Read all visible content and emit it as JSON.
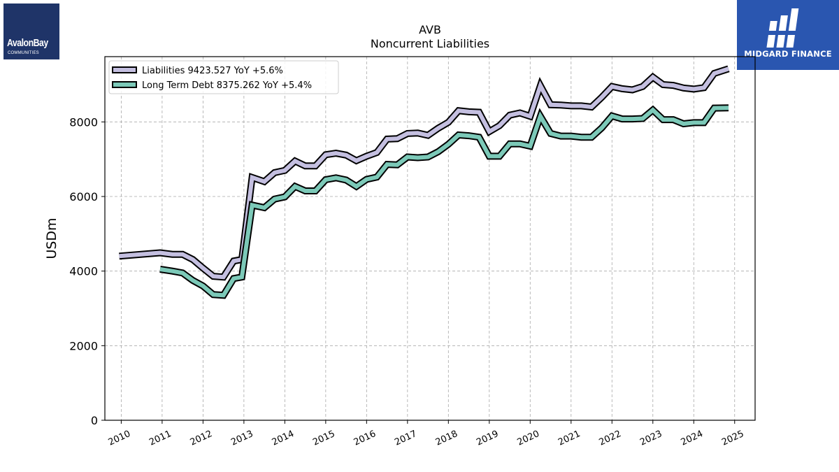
{
  "logos": {
    "left": {
      "brand": "AvalonBay",
      "sub": "COMMUNITIES",
      "background": "#1f3468"
    },
    "right": {
      "word": "MIDGARD FINANCE",
      "background": "#2a56b0"
    }
  },
  "chart_data": {
    "type": "line",
    "title": "AVB",
    "subtitle": "Noncurrent  Liabilities",
    "xlabel": "",
    "ylabel": "USDm",
    "xlim": [
      2009.6,
      2025.5
    ],
    "ylim": [
      0,
      9750
    ],
    "x_ticks": [
      2010,
      2011,
      2012,
      2013,
      2014,
      2015,
      2016,
      2017,
      2018,
      2019,
      2020,
      2021,
      2022,
      2023,
      2024,
      2025
    ],
    "y_ticks": [
      0,
      2000,
      4000,
      6000,
      8000
    ],
    "grid": true,
    "legend_position": "top-left",
    "series": [
      {
        "name": "Liabilities",
        "legend_label": "Liabilities  9423.527 YoY +5.6%",
        "color": "#c4bfe0",
        "points": [
          [
            2009.95,
            4400
          ],
          [
            2010.95,
            4490
          ],
          [
            2011.25,
            4450
          ],
          [
            2011.5,
            4450
          ],
          [
            2011.75,
            4310
          ],
          [
            2012.0,
            4080
          ],
          [
            2012.25,
            3860
          ],
          [
            2012.5,
            3840
          ],
          [
            2012.75,
            4270
          ],
          [
            2012.95,
            4310
          ],
          [
            2013.2,
            6510
          ],
          [
            2013.5,
            6400
          ],
          [
            2013.75,
            6640
          ],
          [
            2014.0,
            6700
          ],
          [
            2014.25,
            6950
          ],
          [
            2014.5,
            6820
          ],
          [
            2014.75,
            6820
          ],
          [
            2015.0,
            7120
          ],
          [
            2015.25,
            7160
          ],
          [
            2015.5,
            7110
          ],
          [
            2015.75,
            6960
          ],
          [
            2016.0,
            7080
          ],
          [
            2016.25,
            7180
          ],
          [
            2016.5,
            7540
          ],
          [
            2016.75,
            7550
          ],
          [
            2017.0,
            7690
          ],
          [
            2017.25,
            7700
          ],
          [
            2017.5,
            7640
          ],
          [
            2017.75,
            7830
          ],
          [
            2018.0,
            7990
          ],
          [
            2018.25,
            8300
          ],
          [
            2018.5,
            8270
          ],
          [
            2018.75,
            8260
          ],
          [
            2019.0,
            7740
          ],
          [
            2019.25,
            7900
          ],
          [
            2019.5,
            8180
          ],
          [
            2019.75,
            8240
          ],
          [
            2020.0,
            8150
          ],
          [
            2020.25,
            8970
          ],
          [
            2020.5,
            8460
          ],
          [
            2020.75,
            8450
          ],
          [
            2021.0,
            8430
          ],
          [
            2021.25,
            8430
          ],
          [
            2021.5,
            8400
          ],
          [
            2021.75,
            8660
          ],
          [
            2022.0,
            8950
          ],
          [
            2022.25,
            8890
          ],
          [
            2022.5,
            8860
          ],
          [
            2022.75,
            8950
          ],
          [
            2023.0,
            9200
          ],
          [
            2023.25,
            9000
          ],
          [
            2023.5,
            8980
          ],
          [
            2023.75,
            8910
          ],
          [
            2024.0,
            8880
          ],
          [
            2024.25,
            8920
          ],
          [
            2024.5,
            9300
          ],
          [
            2024.85,
            9424
          ]
        ]
      },
      {
        "name": "Long Term Debt",
        "legend_label": "Long Term Debt  8375.262 YoY +5.4%",
        "color": "#7cc9b8",
        "points": [
          [
            2010.95,
            4050
          ],
          [
            2011.25,
            4000
          ],
          [
            2011.5,
            3950
          ],
          [
            2011.75,
            3750
          ],
          [
            2012.0,
            3600
          ],
          [
            2012.25,
            3370
          ],
          [
            2012.5,
            3350
          ],
          [
            2012.75,
            3800
          ],
          [
            2012.95,
            3840
          ],
          [
            2013.2,
            5770
          ],
          [
            2013.5,
            5700
          ],
          [
            2013.75,
            5930
          ],
          [
            2014.0,
            5990
          ],
          [
            2014.25,
            6270
          ],
          [
            2014.5,
            6150
          ],
          [
            2014.75,
            6150
          ],
          [
            2015.0,
            6450
          ],
          [
            2015.25,
            6500
          ],
          [
            2015.5,
            6440
          ],
          [
            2015.75,
            6270
          ],
          [
            2016.0,
            6460
          ],
          [
            2016.25,
            6520
          ],
          [
            2016.5,
            6860
          ],
          [
            2016.75,
            6850
          ],
          [
            2017.0,
            7060
          ],
          [
            2017.25,
            7040
          ],
          [
            2017.5,
            7060
          ],
          [
            2017.75,
            7200
          ],
          [
            2018.0,
            7400
          ],
          [
            2018.25,
            7650
          ],
          [
            2018.5,
            7630
          ],
          [
            2018.75,
            7590
          ],
          [
            2019.0,
            7080
          ],
          [
            2019.25,
            7080
          ],
          [
            2019.5,
            7410
          ],
          [
            2019.75,
            7410
          ],
          [
            2020.0,
            7350
          ],
          [
            2020.25,
            8150
          ],
          [
            2020.5,
            7690
          ],
          [
            2020.75,
            7620
          ],
          [
            2021.0,
            7620
          ],
          [
            2021.25,
            7590
          ],
          [
            2021.5,
            7590
          ],
          [
            2021.75,
            7840
          ],
          [
            2022.0,
            8160
          ],
          [
            2022.25,
            8080
          ],
          [
            2022.5,
            8080
          ],
          [
            2022.75,
            8090
          ],
          [
            2023.0,
            8320
          ],
          [
            2023.25,
            8060
          ],
          [
            2023.5,
            8060
          ],
          [
            2023.75,
            7950
          ],
          [
            2024.0,
            7980
          ],
          [
            2024.25,
            7980
          ],
          [
            2024.5,
            8370
          ],
          [
            2024.85,
            8375
          ]
        ]
      }
    ]
  }
}
